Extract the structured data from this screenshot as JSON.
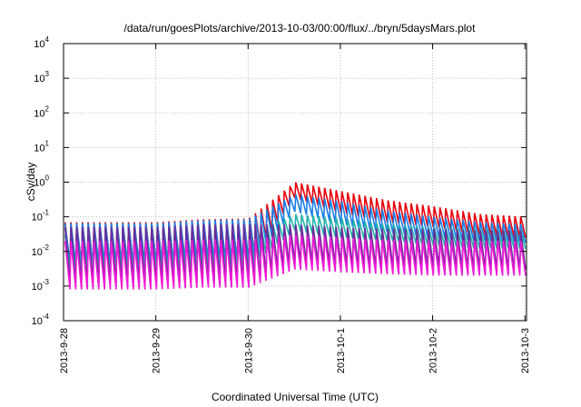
{
  "chart_data": {
    "type": "line",
    "title": "/data/run/goesPlots/archive/2013-10-03/00:00/flux/../bryn/5daysMars.plot",
    "xlabel": "Coordinated Universal Time (UTC)",
    "ylabel": "cSv/day",
    "xscale": "time",
    "yscale": "log",
    "xlim": [
      "2013-09-28 00:00",
      "2013-10-03 00:25"
    ],
    "ylim": [
      0.0001,
      10000
    ],
    "x_ticks": [
      "2013-9-28",
      "2013-9-29",
      "2013-9-30",
      "2013-10-1",
      "2013-10-2",
      "2013-10-3"
    ],
    "y_ticks": [
      {
        "value": 0.0001,
        "base": "10",
        "exp": "-4"
      },
      {
        "value": 0.001,
        "base": "10",
        "exp": "-3"
      },
      {
        "value": 0.01,
        "base": "10",
        "exp": "-2"
      },
      {
        "value": 0.1,
        "base": "10",
        "exp": "-1"
      },
      {
        "value": 1,
        "base": "10",
        "exp": "0"
      },
      {
        "value": 10,
        "base": "10",
        "exp": "1"
      },
      {
        "value": 100,
        "base": "10",
        "exp": "2"
      },
      {
        "value": 1000,
        "base": "10",
        "exp": "3"
      },
      {
        "value": 10000,
        "base": "10",
        "exp": "4"
      }
    ],
    "grid": true,
    "legend": "none",
    "pattern_note": "sawtooth series, one cycle about every 90 minutes",
    "series": [
      {
        "color": "#e8000b",
        "peaks": [
          0.07,
          0.07,
          0.07,
          0.085,
          0.09,
          1.0,
          0.55,
          0.3,
          0.2,
          0.12,
          0.1
        ],
        "troughs": [
          0.004,
          0.004,
          0.004,
          0.005,
          0.005,
          0.35,
          0.13,
          0.07,
          0.05,
          0.03,
          0.025
        ]
      },
      {
        "color": "#1a7ee6",
        "peaks": [
          0.065,
          0.065,
          0.065,
          0.08,
          0.085,
          0.45,
          0.28,
          0.15,
          0.1,
          0.07,
          0.06
        ],
        "troughs": [
          0.004,
          0.004,
          0.004,
          0.005,
          0.005,
          0.14,
          0.06,
          0.035,
          0.025,
          0.02,
          0.018
        ]
      },
      {
        "color": "#20b2aa",
        "peaks": [
          0.03,
          0.03,
          0.03,
          0.035,
          0.035,
          0.12,
          0.09,
          0.06,
          0.05,
          0.045,
          0.04
        ],
        "troughs": [
          0.003,
          0.003,
          0.003,
          0.0035,
          0.0035,
          0.04,
          0.025,
          0.02,
          0.015,
          0.012,
          0.012
        ]
      },
      {
        "color": "#6a2b9a",
        "peaks": [
          0.05,
          0.05,
          0.05,
          0.06,
          0.06,
          0.06,
          0.05,
          0.045,
          0.045,
          0.04,
          0.04
        ],
        "troughs": [
          0.0012,
          0.0012,
          0.0012,
          0.0013,
          0.0013,
          0.005,
          0.004,
          0.0035,
          0.0035,
          0.003,
          0.003
        ]
      },
      {
        "color": "#ee1bd6",
        "peaks": [
          0.02,
          0.02,
          0.02,
          0.022,
          0.022,
          0.03,
          0.025,
          0.022,
          0.02,
          0.02,
          0.02
        ],
        "troughs": [
          0.0008,
          0.0008,
          0.0008,
          0.0009,
          0.0009,
          0.003,
          0.0025,
          0.0022,
          0.002,
          0.002,
          0.002
        ]
      }
    ]
  }
}
